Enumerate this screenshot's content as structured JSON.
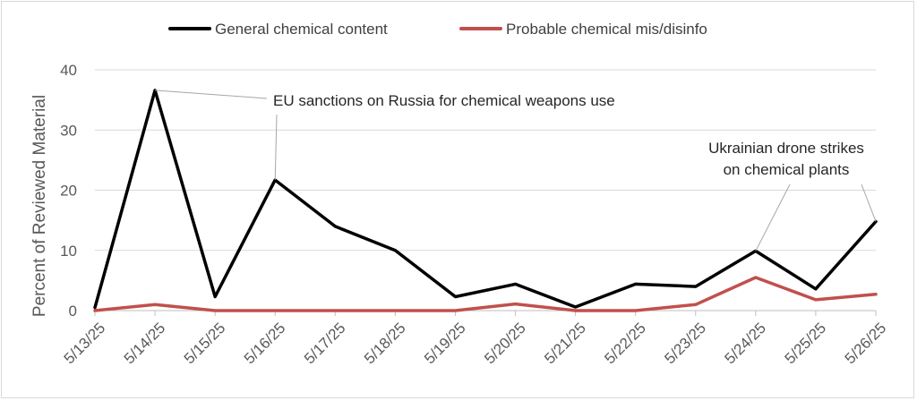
{
  "chart_data": {
    "type": "line",
    "ylabel": "Percent of Reviewed Material",
    "xlabel": "",
    "ylim": [
      0,
      40
    ],
    "yticks": [
      0,
      10,
      20,
      30,
      40
    ],
    "grid": true,
    "legend_position": "top",
    "categories": [
      "5/13/25",
      "5/14/25",
      "5/15/25",
      "5/16/25",
      "5/17/25",
      "5/18/25",
      "5/19/25",
      "5/20/25",
      "5/21/25",
      "5/22/25",
      "5/23/25",
      "5/24/25",
      "5/25/25",
      "5/26/25"
    ],
    "series": [
      {
        "name": "General chemical content",
        "color": "#000000",
        "values": [
          0.5,
          36.6,
          2.3,
          21.7,
          14.0,
          10.0,
          2.3,
          4.4,
          0.6,
          4.4,
          4.0,
          9.9,
          3.6,
          14.8
        ]
      },
      {
        "name": "Probable chemical mis/disinfo",
        "color": "#c0504d",
        "values": [
          0.0,
          1.0,
          0.0,
          0.0,
          0.0,
          0.0,
          0.0,
          1.1,
          0.0,
          0.0,
          1.0,
          5.5,
          1.8,
          2.7
        ]
      }
    ],
    "annotations": [
      {
        "lines": [
          "EU sanctions on Russia for chemical weapons use"
        ],
        "targets": [
          1,
          3
        ]
      },
      {
        "lines": [
          "Ukrainian drone strikes",
          "on chemical plants"
        ],
        "targets": [
          11,
          13
        ]
      }
    ]
  }
}
